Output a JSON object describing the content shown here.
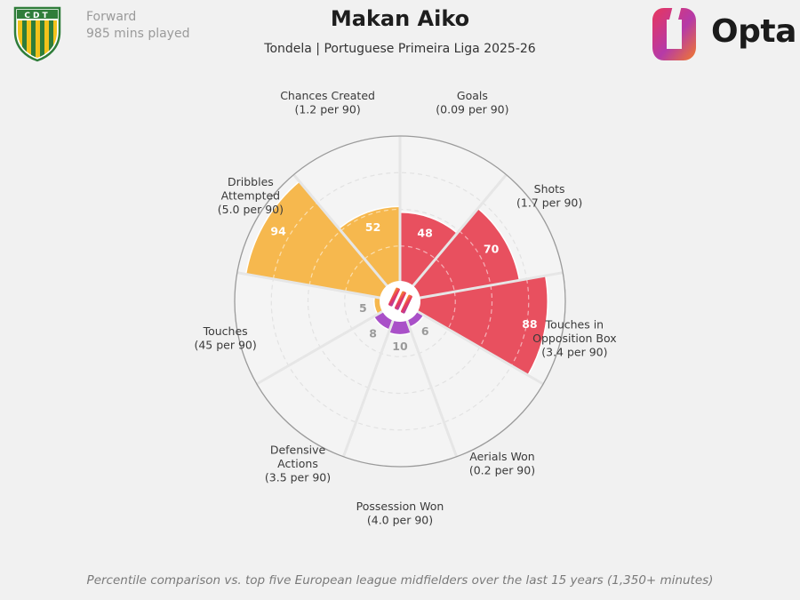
{
  "header": {
    "position": "Forward",
    "minutes": "985 mins played",
    "title": "Makan Aiko",
    "subtitle": "Tondela | Portuguese Primeira Liga 2025-26",
    "club_abbr": "CDT",
    "brand": "Opta"
  },
  "footnote": "Percentile comparison vs. top five European league midfielders over the last 15 years (1,350+ minutes)",
  "colors": {
    "attacking": "#e8505f",
    "creative": "#f6b84e",
    "defensive": "#a950c8",
    "ring": "#e4e4e4",
    "outline": "#9a9a9a"
  },
  "chart_data": {
    "type": "radar-bar",
    "scale": [
      0,
      100
    ],
    "grid": true,
    "categories": [
      {
        "name": "Goals",
        "value_label": "(0.09 per 90)",
        "percentile": 48,
        "group": "attacking"
      },
      {
        "name": "Shots",
        "value_label": "(1.7 per 90)",
        "percentile": 70,
        "group": "attacking"
      },
      {
        "name": "Touches in Opposition Box",
        "label_lines": [
          "Touches in",
          "Opposition Box"
        ],
        "value_label": "(3.4 per 90)",
        "percentile": 88,
        "group": "attacking"
      },
      {
        "name": "Aerials Won",
        "value_label": "(0.2 per 90)",
        "percentile": 6,
        "group": "defensive"
      },
      {
        "name": "Possession Won",
        "value_label": "(4.0 per 90)",
        "percentile": 10,
        "group": "defensive"
      },
      {
        "name": "Defensive Actions",
        "label_lines": [
          "Defensive",
          "Actions"
        ],
        "value_label": "(3.5 per 90)",
        "percentile": 8,
        "group": "defensive"
      },
      {
        "name": "Touches",
        "value_label": "(45 per 90)",
        "percentile": 5,
        "group": "creative"
      },
      {
        "name": "Dribbles Attempted",
        "label_lines": [
          "Dribbles",
          "Attempted"
        ],
        "value_label": "(5.0 per 90)",
        "percentile": 94,
        "group": "creative"
      },
      {
        "name": "Chances Created",
        "value_label": "(1.2 per 90)",
        "percentile": 52,
        "group": "creative"
      }
    ]
  }
}
